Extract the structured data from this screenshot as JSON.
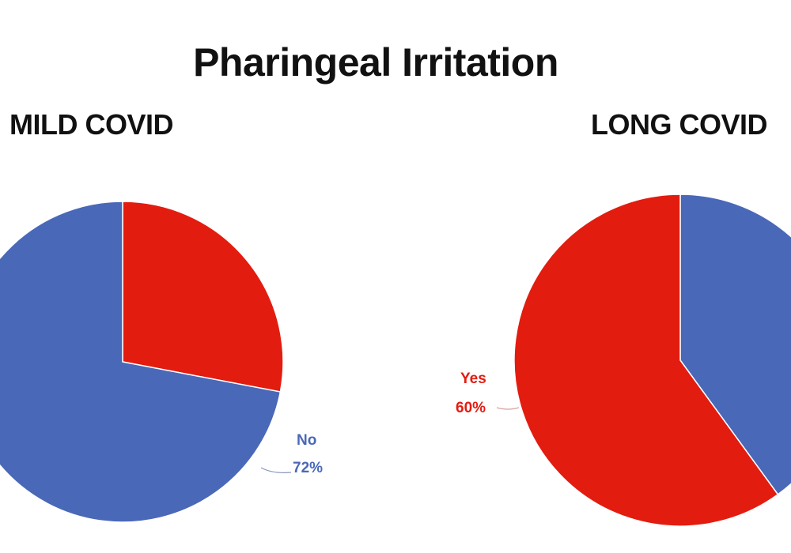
{
  "title": "Pharingeal Irritation",
  "colors": {
    "yes": "#e31c10",
    "no": "#4a68b8",
    "title": "#111111"
  },
  "chart_data": [
    {
      "type": "pie",
      "title": "MILD COVID",
      "slices": [
        {
          "label": "Yes",
          "value": 28,
          "color": "#e31c10"
        },
        {
          "label": "No",
          "value": 72,
          "color": "#4a68b8",
          "value_label": "72%"
        }
      ]
    },
    {
      "type": "pie",
      "title": "LONG COVID",
      "slices": [
        {
          "label": "No",
          "value": 40,
          "color": "#4a68b8"
        },
        {
          "label": "Yes",
          "value": 60,
          "color": "#e31c10",
          "value_label": "60%"
        }
      ]
    }
  ]
}
